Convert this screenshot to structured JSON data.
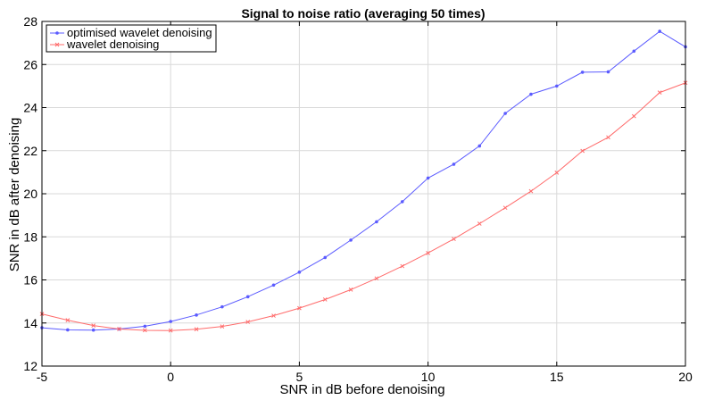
{
  "chart_data": {
    "type": "line",
    "title": "Signal to noise ratio (averaging 50 times)",
    "xlabel": "SNR in dB before denoising",
    "ylabel": "SNR in dB after denoising",
    "xlim": [
      -5,
      20
    ],
    "ylim": [
      12,
      28
    ],
    "xticks": [
      -5,
      0,
      5,
      10,
      15,
      20
    ],
    "yticks": [
      12,
      14,
      16,
      18,
      20,
      22,
      24,
      26,
      28
    ],
    "grid": true,
    "legend_position": "top-left",
    "x": [
      -5,
      -4,
      -3,
      -2,
      -1,
      0,
      1,
      2,
      3,
      4,
      5,
      6,
      7,
      8,
      9,
      10,
      11,
      12,
      13,
      14,
      15,
      16,
      17,
      18,
      19,
      20
    ],
    "series": [
      {
        "name": "optimised wavelet denoising",
        "color": "#5b5bff",
        "marker": "dot",
        "values": [
          13.78,
          13.68,
          13.67,
          13.72,
          13.85,
          14.07,
          14.37,
          14.75,
          15.22,
          15.76,
          16.36,
          17.04,
          17.85,
          18.7,
          19.63,
          20.73,
          21.37,
          22.22,
          23.73,
          24.62,
          25.0,
          25.64,
          25.66,
          26.62,
          27.54,
          26.82
        ]
      },
      {
        "name": "wavelet denoising",
        "color": "#ff6b6b",
        "marker": "x",
        "values": [
          14.42,
          14.13,
          13.88,
          13.72,
          13.66,
          13.65,
          13.71,
          13.84,
          14.05,
          14.34,
          14.69,
          15.09,
          15.55,
          16.07,
          16.64,
          17.25,
          17.9,
          18.61,
          19.35,
          20.12,
          20.98,
          21.99,
          22.62,
          23.6,
          24.7,
          25.15
        ]
      }
    ]
  }
}
